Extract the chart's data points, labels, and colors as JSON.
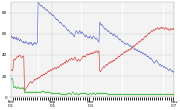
{
  "title": "",
  "background_color": "#ffffff",
  "grid_color": "#c8c8c8",
  "line_colors": {
    "approve": "#4455bb",
    "disapprove": "#cc2222",
    "unsure": "#22aa22"
  },
  "ylim": [
    0,
    90
  ],
  "yticks": [
    0,
    20,
    40,
    60,
    80
  ],
  "figsize": [
    1.8,
    1.1
  ],
  "dpi": 100,
  "approve": [
    57,
    58,
    56,
    57,
    55,
    57,
    56,
    55,
    57,
    54,
    55,
    56,
    54,
    53,
    55,
    54,
    53,
    52,
    53,
    51,
    52,
    51,
    53,
    52,
    51,
    50,
    51,
    52,
    50,
    51,
    52,
    50,
    49,
    51,
    50,
    52,
    51,
    50,
    51,
    52,
    90,
    89,
    88,
    87,
    86,
    87,
    86,
    85,
    84,
    85,
    84,
    83,
    82,
    83,
    82,
    81,
    80,
    79,
    80,
    79,
    78,
    77,
    78,
    77,
    76,
    75,
    74,
    73,
    74,
    73,
    72,
    71,
    70,
    71,
    70,
    69,
    68,
    67,
    68,
    67,
    66,
    65,
    64,
    63,
    64,
    63,
    62,
    61,
    60,
    61,
    60,
    59,
    58,
    57,
    60,
    62,
    63,
    62,
    61,
    60,
    62,
    63,
    61,
    60,
    62,
    61,
    60,
    59,
    58,
    57,
    59,
    58,
    57,
    56,
    57,
    56,
    58,
    57,
    56,
    55,
    57,
    58,
    57,
    56,
    55,
    56,
    55,
    54,
    53,
    52,
    71,
    70,
    68,
    69,
    68,
    67,
    66,
    65,
    64,
    65,
    64,
    63,
    62,
    63,
    62,
    61,
    60,
    61,
    60,
    59,
    58,
    60,
    59,
    58,
    57,
    58,
    57,
    56,
    55,
    54,
    55,
    54,
    53,
    52,
    53,
    52,
    51,
    50,
    51,
    50,
    50,
    51,
    50,
    49,
    48,
    49,
    48,
    47,
    48,
    47,
    46,
    45,
    46,
    45,
    44,
    45,
    44,
    43,
    44,
    43,
    42,
    43,
    42,
    41,
    42,
    41,
    40,
    41,
    40,
    39,
    38,
    39,
    38,
    37,
    36,
    37,
    36,
    35,
    34,
    33,
    32,
    33,
    34,
    35,
    34,
    33,
    32,
    31,
    30,
    31,
    30,
    29,
    30,
    29,
    28,
    29,
    28,
    27,
    28,
    27,
    26,
    25,
    26,
    27,
    26,
    25,
    24,
    25,
    24,
    23
  ],
  "disapprove": [
    25,
    26,
    25,
    26,
    35,
    36,
    35,
    36,
    37,
    38,
    39,
    38,
    39,
    40,
    39,
    38,
    37,
    38,
    39,
    38,
    6,
    7,
    8,
    9,
    10,
    11,
    12,
    13,
    14,
    15,
    14,
    13,
    14,
    15,
    16,
    17,
    16,
    17,
    18,
    17,
    18,
    19,
    18,
    19,
    20,
    21,
    20,
    21,
    22,
    21,
    22,
    23,
    22,
    23,
    24,
    25,
    24,
    25,
    26,
    25,
    26,
    27,
    26,
    27,
    28,
    27,
    28,
    27,
    28,
    29,
    28,
    29,
    30,
    31,
    30,
    31,
    32,
    31,
    32,
    33,
    32,
    35,
    34,
    33,
    34,
    35,
    36,
    35,
    36,
    37,
    36,
    35,
    36,
    37,
    38,
    36,
    35,
    34,
    35,
    36,
    35,
    34,
    35,
    36,
    37,
    38,
    39,
    38,
    39,
    38,
    39,
    40,
    41,
    40,
    41,
    40,
    41,
    42,
    41,
    42,
    41,
    42,
    43,
    42,
    43,
    44,
    43,
    42,
    43,
    44,
    25,
    24,
    25,
    26,
    27,
    28,
    29,
    28,
    29,
    30,
    31,
    30,
    31,
    32,
    33,
    32,
    33,
    34,
    33,
    34,
    35,
    34,
    35,
    36,
    37,
    36,
    37,
    38,
    39,
    38,
    39,
    40,
    41,
    40,
    41,
    42,
    43,
    42,
    43,
    44,
    43,
    44,
    45,
    44,
    45,
    46,
    45,
    46,
    47,
    48,
    49,
    48,
    49,
    50,
    51,
    50,
    51,
    52,
    53,
    52,
    53,
    54,
    55,
    54,
    55,
    56,
    57,
    58,
    57,
    58,
    59,
    60,
    61,
    60,
    61,
    62,
    63,
    62,
    63,
    64,
    63,
    64,
    65,
    64,
    65,
    66,
    65,
    64,
    65,
    66,
    65,
    66,
    65,
    66,
    65,
    64,
    65,
    66,
    65,
    64,
    65,
    64,
    63,
    64,
    65,
    64,
    65,
    64,
    65,
    64
  ],
  "unsure": [
    18,
    17,
    18,
    16,
    9,
    10,
    9,
    10,
    8,
    9,
    10,
    9,
    8,
    9,
    8,
    9,
    8,
    9,
    8,
    9,
    4,
    5,
    4,
    5,
    4,
    5,
    4,
    5,
    4,
    5,
    4,
    5,
    4,
    5,
    4,
    5,
    4,
    5,
    4,
    5,
    4,
    5,
    4,
    5,
    4,
    5,
    6,
    5,
    6,
    5,
    4,
    5,
    4,
    5,
    4,
    5,
    4,
    5,
    4,
    3,
    4,
    3,
    4,
    3,
    4,
    3,
    4,
    3,
    4,
    3,
    4,
    3,
    4,
    3,
    2,
    3,
    2,
    3,
    2,
    3,
    2,
    3,
    2,
    3,
    4,
    3,
    4,
    3,
    2,
    3,
    4,
    5,
    4,
    3,
    2,
    3,
    4,
    3,
    2,
    3,
    2,
    3,
    4,
    3,
    4,
    3,
    4,
    3,
    4,
    3,
    4,
    3,
    2,
    3,
    2,
    3,
    4,
    3,
    2,
    3,
    4,
    3,
    4,
    3,
    2,
    3,
    4,
    3,
    4,
    3,
    4,
    3,
    4,
    3,
    4,
    3,
    4,
    3,
    4,
    3,
    4,
    3,
    2,
    3,
    2,
    3,
    2,
    3,
    2,
    3,
    2,
    3,
    2,
    3,
    2,
    3,
    2,
    3,
    2,
    3,
    2,
    3,
    2,
    3,
    2,
    3,
    2,
    3,
    2,
    3,
    2,
    3,
    2,
    3,
    2,
    3,
    2,
    3,
    2,
    3,
    2,
    3,
    2,
    3,
    2,
    3,
    2,
    3,
    2,
    3,
    2,
    3,
    2,
    3,
    2,
    3,
    2,
    3,
    2,
    3,
    2,
    3,
    2,
    3,
    2,
    3,
    2,
    3,
    2,
    3,
    2,
    3,
    2,
    3,
    2,
    3,
    2,
    3,
    2,
    3,
    2,
    3,
    2,
    3,
    2,
    3,
    2,
    3,
    2,
    3,
    2,
    3,
    2,
    3,
    2,
    3,
    2,
    3,
    2,
    3
  ]
}
